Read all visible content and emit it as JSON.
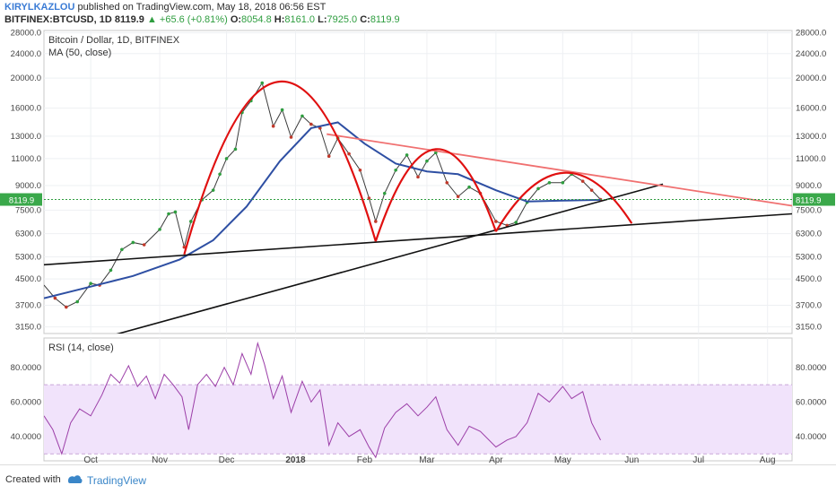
{
  "header": {
    "author": "KIRYLKAZLOU",
    "published": "published on TradingView.com, May 18, 2018 06:56 EST",
    "symbol": "BITFINEX:BTCUSD, 1D",
    "close_price": "8119.9",
    "change": "+65.6 (+0.81%)",
    "o_label": "O:",
    "o_value": "8054.8",
    "h_label": "H:",
    "h_value": "8161.0",
    "l_label": "L:",
    "l_value": "7925.0",
    "c_label": "C:",
    "c_value": "8119.9"
  },
  "footer": {
    "created": "Created with",
    "brand": "TradingView"
  },
  "colors": {
    "up": "#2e9d3f",
    "down": "#c0392b",
    "ma": "#2e4fa3",
    "red": "#e01010",
    "pink": "#f07070",
    "black": "#111111",
    "rsi": "#9c3fa8",
    "rsi_band": "#f1e3fb"
  },
  "chart_data": [
    {
      "type": "line",
      "title": "Bitcoin / Dollar, 1D, BITFINEX",
      "subtitle": "MA (50, close)",
      "price_tag": "8119.9",
      "x_ticks": [
        "Oct",
        "Nov",
        "Dec",
        "2018",
        "Feb",
        "Mar",
        "Apr",
        "May",
        "Jun",
        "Jul",
        "Aug"
      ],
      "x_tick_dates": [
        "2017-10-01",
        "2017-11-01",
        "2017-12-01",
        "2018-01-01",
        "2018-02-01",
        "2018-03-01",
        "2018-04-01",
        "2018-05-01",
        "2018-06-01",
        "2018-07-01",
        "2018-08-01"
      ],
      "y_ticks": [
        3150,
        3700,
        4500,
        5300,
        6300,
        7500,
        9000,
        11000,
        13000,
        16000,
        20000,
        24000,
        28000
      ],
      "y_scale": "log",
      "ylim": [
        3000,
        28500
      ],
      "xlim": [
        "2017-09-10",
        "2018-08-12"
      ],
      "grid": true,
      "series": [
        {
          "name": "BTCUSD",
          "type": "close",
          "x": [
            "2017-09-10",
            "2017-09-15",
            "2017-09-20",
            "2017-09-25",
            "2017-10-01",
            "2017-10-05",
            "2017-10-10",
            "2017-10-15",
            "2017-10-20",
            "2017-10-25",
            "2017-11-01",
            "2017-11-05",
            "2017-11-08",
            "2017-11-12",
            "2017-11-15",
            "2017-11-20",
            "2017-11-25",
            "2017-11-28",
            "2017-12-01",
            "2017-12-05",
            "2017-12-08",
            "2017-12-12",
            "2017-12-17",
            "2017-12-22",
            "2017-12-26",
            "2017-12-30",
            "2018-01-04",
            "2018-01-08",
            "2018-01-12",
            "2018-01-16",
            "2018-01-20",
            "2018-01-25",
            "2018-01-30",
            "2018-02-03",
            "2018-02-06",
            "2018-02-10",
            "2018-02-15",
            "2018-02-20",
            "2018-02-25",
            "2018-03-01",
            "2018-03-05",
            "2018-03-10",
            "2018-03-15",
            "2018-03-20",
            "2018-03-25",
            "2018-04-01",
            "2018-04-06",
            "2018-04-10",
            "2018-04-15",
            "2018-04-20",
            "2018-04-25",
            "2018-05-01",
            "2018-05-05",
            "2018-05-10",
            "2018-05-14",
            "2018-05-18"
          ],
          "values": [
            4300,
            3900,
            3650,
            3800,
            4350,
            4300,
            4800,
            5600,
            5900,
            5800,
            6500,
            7300,
            7400,
            5700,
            6900,
            8100,
            8700,
            9800,
            11000,
            11800,
            15500,
            16900,
            19300,
            14000,
            15800,
            12900,
            15100,
            14200,
            13800,
            11200,
            12800,
            11400,
            10100,
            8200,
            6900,
            8500,
            10100,
            11300,
            9600,
            10800,
            11500,
            9200,
            8300,
            8900,
            8500,
            6900,
            6700,
            6850,
            7950,
            8800,
            9200,
            9200,
            9800,
            9300,
            8700,
            8120
          ]
        },
        {
          "name": "MA (50, close)",
          "x": [
            "2017-09-10",
            "2017-10-01",
            "2017-10-20",
            "2017-11-10",
            "2017-11-25",
            "2017-12-10",
            "2017-12-25",
            "2018-01-08",
            "2018-01-20",
            "2018-02-01",
            "2018-02-15",
            "2018-03-01",
            "2018-03-15",
            "2018-04-01",
            "2018-04-15",
            "2018-05-01",
            "2018-05-18"
          ],
          "values": [
            3900,
            4250,
            4600,
            5200,
            6000,
            7700,
            10800,
            13800,
            14400,
            12300,
            10600,
            10000,
            9800,
            8700,
            8000,
            8050,
            8100
          ]
        }
      ],
      "annotations": [
        {
          "name": "arc-1",
          "from": [
            "2017-11-12",
            5400
          ],
          "to": [
            "2018-02-06",
            5950
          ],
          "peak": 19500
        },
        {
          "name": "arc-2",
          "from": [
            "2018-02-06",
            5950
          ],
          "to": [
            "2018-04-01",
            6400
          ],
          "peak": 11800
        },
        {
          "name": "arc-3",
          "from": [
            "2018-04-01",
            6400
          ],
          "to": [
            "2018-06-01",
            6800
          ],
          "peak": 9900
        },
        {
          "name": "falling-resistance",
          "from": [
            "2018-01-15",
            13200
          ],
          "to": [
            "2018-08-12",
            7750
          ]
        },
        {
          "name": "support-line",
          "from": [
            "2017-09-10",
            5000
          ],
          "to": [
            "2018-08-12",
            7300
          ]
        },
        {
          "name": "rising-trendline",
          "from": [
            "2017-10-10",
            2950
          ],
          "to": [
            "2018-06-15",
            9100
          ]
        }
      ]
    },
    {
      "type": "line",
      "title": "RSI (14, close)",
      "y_ticks": [
        40,
        60,
        80
      ],
      "y_tick_labels": [
        "40.0000",
        "60.0000",
        "80.0000"
      ],
      "ylim": [
        26,
        97
      ],
      "band": [
        30,
        70
      ],
      "series": [
        {
          "name": "RSI",
          "x": [
            "2017-09-10",
            "2017-09-14",
            "2017-09-18",
            "2017-09-22",
            "2017-09-26",
            "2017-10-01",
            "2017-10-06",
            "2017-10-10",
            "2017-10-14",
            "2017-10-18",
            "2017-10-22",
            "2017-10-26",
            "2017-10-30",
            "2017-11-03",
            "2017-11-07",
            "2017-11-11",
            "2017-11-14",
            "2017-11-18",
            "2017-11-22",
            "2017-11-26",
            "2017-11-30",
            "2017-12-04",
            "2017-12-08",
            "2017-12-12",
            "2017-12-15",
            "2017-12-18",
            "2017-12-22",
            "2017-12-26",
            "2017-12-30",
            "2018-01-04",
            "2018-01-08",
            "2018-01-12",
            "2018-01-16",
            "2018-01-20",
            "2018-01-25",
            "2018-01-30",
            "2018-02-03",
            "2018-02-06",
            "2018-02-10",
            "2018-02-15",
            "2018-02-20",
            "2018-02-25",
            "2018-03-01",
            "2018-03-05",
            "2018-03-10",
            "2018-03-15",
            "2018-03-20",
            "2018-03-25",
            "2018-04-01",
            "2018-04-06",
            "2018-04-10",
            "2018-04-15",
            "2018-04-20",
            "2018-04-25",
            "2018-05-01",
            "2018-05-05",
            "2018-05-10",
            "2018-05-14",
            "2018-05-18"
          ],
          "values": [
            52,
            44,
            30,
            48,
            56,
            52,
            64,
            76,
            71,
            81,
            69,
            75,
            62,
            76,
            70,
            63,
            44,
            70,
            76,
            69,
            80,
            70,
            88,
            76,
            94,
            82,
            62,
            75,
            54,
            72,
            60,
            67,
            35,
            48,
            40,
            44,
            34,
            28,
            45,
            54,
            59,
            52,
            57,
            63,
            44,
            35,
            46,
            43,
            34,
            38,
            40,
            48,
            65,
            60,
            69,
            62,
            66,
            48,
            38
          ]
        }
      ]
    }
  ]
}
